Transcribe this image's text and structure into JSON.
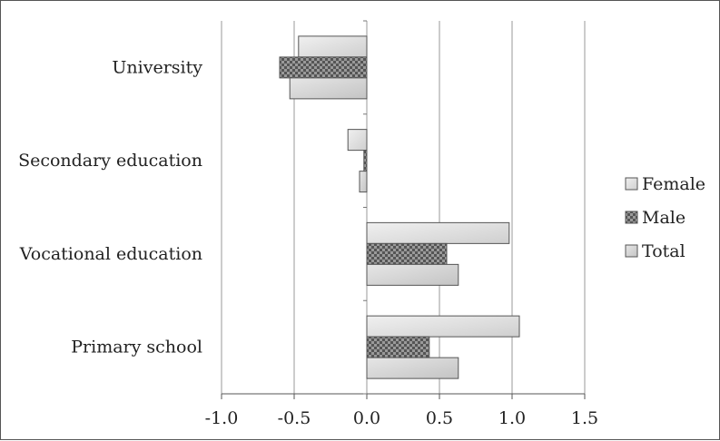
{
  "chart_data": {
    "type": "bar",
    "orientation": "horizontal",
    "categories": [
      "University",
      "Secondary education",
      "Vocational education",
      "Primary school"
    ],
    "series": [
      {
        "name": "Female",
        "values": [
          -0.47,
          -0.13,
          0.98,
          1.05
        ],
        "fill": "#e2e2e2"
      },
      {
        "name": "Male",
        "values": [
          -0.6,
          -0.02,
          0.55,
          0.43
        ],
        "fill": "#8a8a8a"
      },
      {
        "name": "Total",
        "values": [
          -0.53,
          -0.05,
          0.63,
          0.63
        ],
        "fill": "#d6d6d6"
      }
    ],
    "xlim": [
      -1.0,
      1.5
    ],
    "xticks": [
      "-1.0",
      "-0.5",
      "0.0",
      "0.5",
      "1.0",
      "1.5"
    ],
    "grid": "vertical",
    "legend": "right"
  }
}
